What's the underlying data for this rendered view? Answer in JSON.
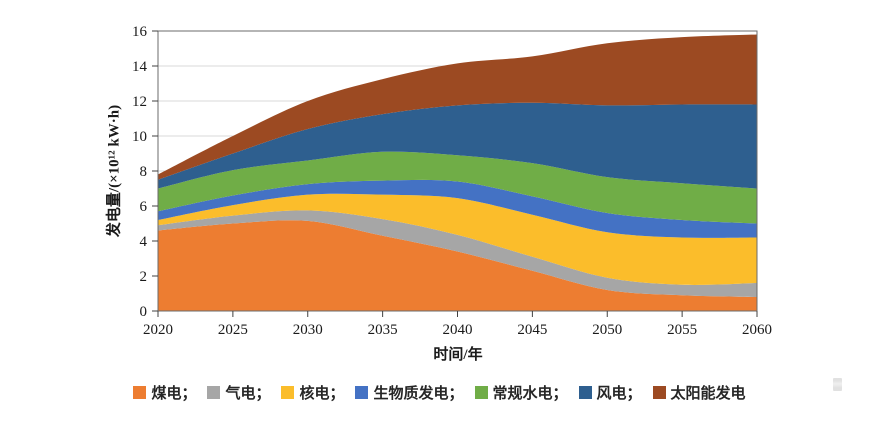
{
  "figure": {
    "y_axis_title": "发电量/(×10¹² kW·h)",
    "x_axis_title": "时间/年"
  },
  "chart_data": {
    "type": "area",
    "stacked": true,
    "title": "",
    "xlabel": "时间/年",
    "ylabel": "发电量/(×10¹² kW·h)",
    "x": [
      2020,
      2025,
      2030,
      2035,
      2040,
      2045,
      2050,
      2055,
      2060
    ],
    "xlim": [
      2020,
      2060
    ],
    "ylim": [
      0,
      16
    ],
    "y_ticks": [
      0,
      2,
      4,
      6,
      8,
      10,
      12,
      14,
      16
    ],
    "grid": "horizontal",
    "legend_position": "bottom",
    "series": [
      {
        "key": "coal",
        "name": "煤电",
        "color": "#ED7D31",
        "values": [
          4.6,
          5.0,
          5.15,
          4.3,
          3.4,
          2.3,
          1.2,
          0.9,
          0.8
        ]
      },
      {
        "key": "gas",
        "name": "气电",
        "color": "#A6A6A6",
        "values": [
          0.3,
          0.45,
          0.6,
          0.95,
          0.95,
          0.8,
          0.7,
          0.6,
          0.8
        ]
      },
      {
        "key": "nuclear",
        "name": "核电",
        "color": "#FBBD2B",
        "values": [
          0.3,
          0.6,
          0.9,
          1.4,
          2.1,
          2.4,
          2.6,
          2.7,
          2.6
        ]
      },
      {
        "key": "biomass",
        "name": "生物质发电",
        "color": "#4472C4",
        "values": [
          0.5,
          0.55,
          0.6,
          0.8,
          0.95,
          1.05,
          1.1,
          1.0,
          0.8
        ]
      },
      {
        "key": "hydro",
        "name": "常规水电",
        "color": "#70AD47",
        "values": [
          1.3,
          1.45,
          1.35,
          1.65,
          1.5,
          1.9,
          2.05,
          2.1,
          2.0
        ]
      },
      {
        "key": "wind",
        "name": "风电",
        "color": "#2E5F8F",
        "values": [
          0.5,
          0.95,
          1.8,
          2.15,
          2.85,
          3.45,
          4.1,
          4.5,
          4.8
        ]
      },
      {
        "key": "solar",
        "name": "太阳能发电",
        "color": "#9C4A22",
        "values": [
          0.3,
          1.0,
          1.6,
          2.0,
          2.4,
          2.65,
          3.55,
          3.85,
          4.0
        ]
      }
    ],
    "legend_labels": [
      "煤电；",
      "气电；",
      "核电；",
      "生物质发电；",
      "常规水电；",
      "风电；",
      "太阳能发电"
    ],
    "colors": {
      "grid": "#D9D9D9",
      "frame": "#6b6b6b",
      "axis": "#404040",
      "tick_text": "#1a1a1a"
    }
  }
}
